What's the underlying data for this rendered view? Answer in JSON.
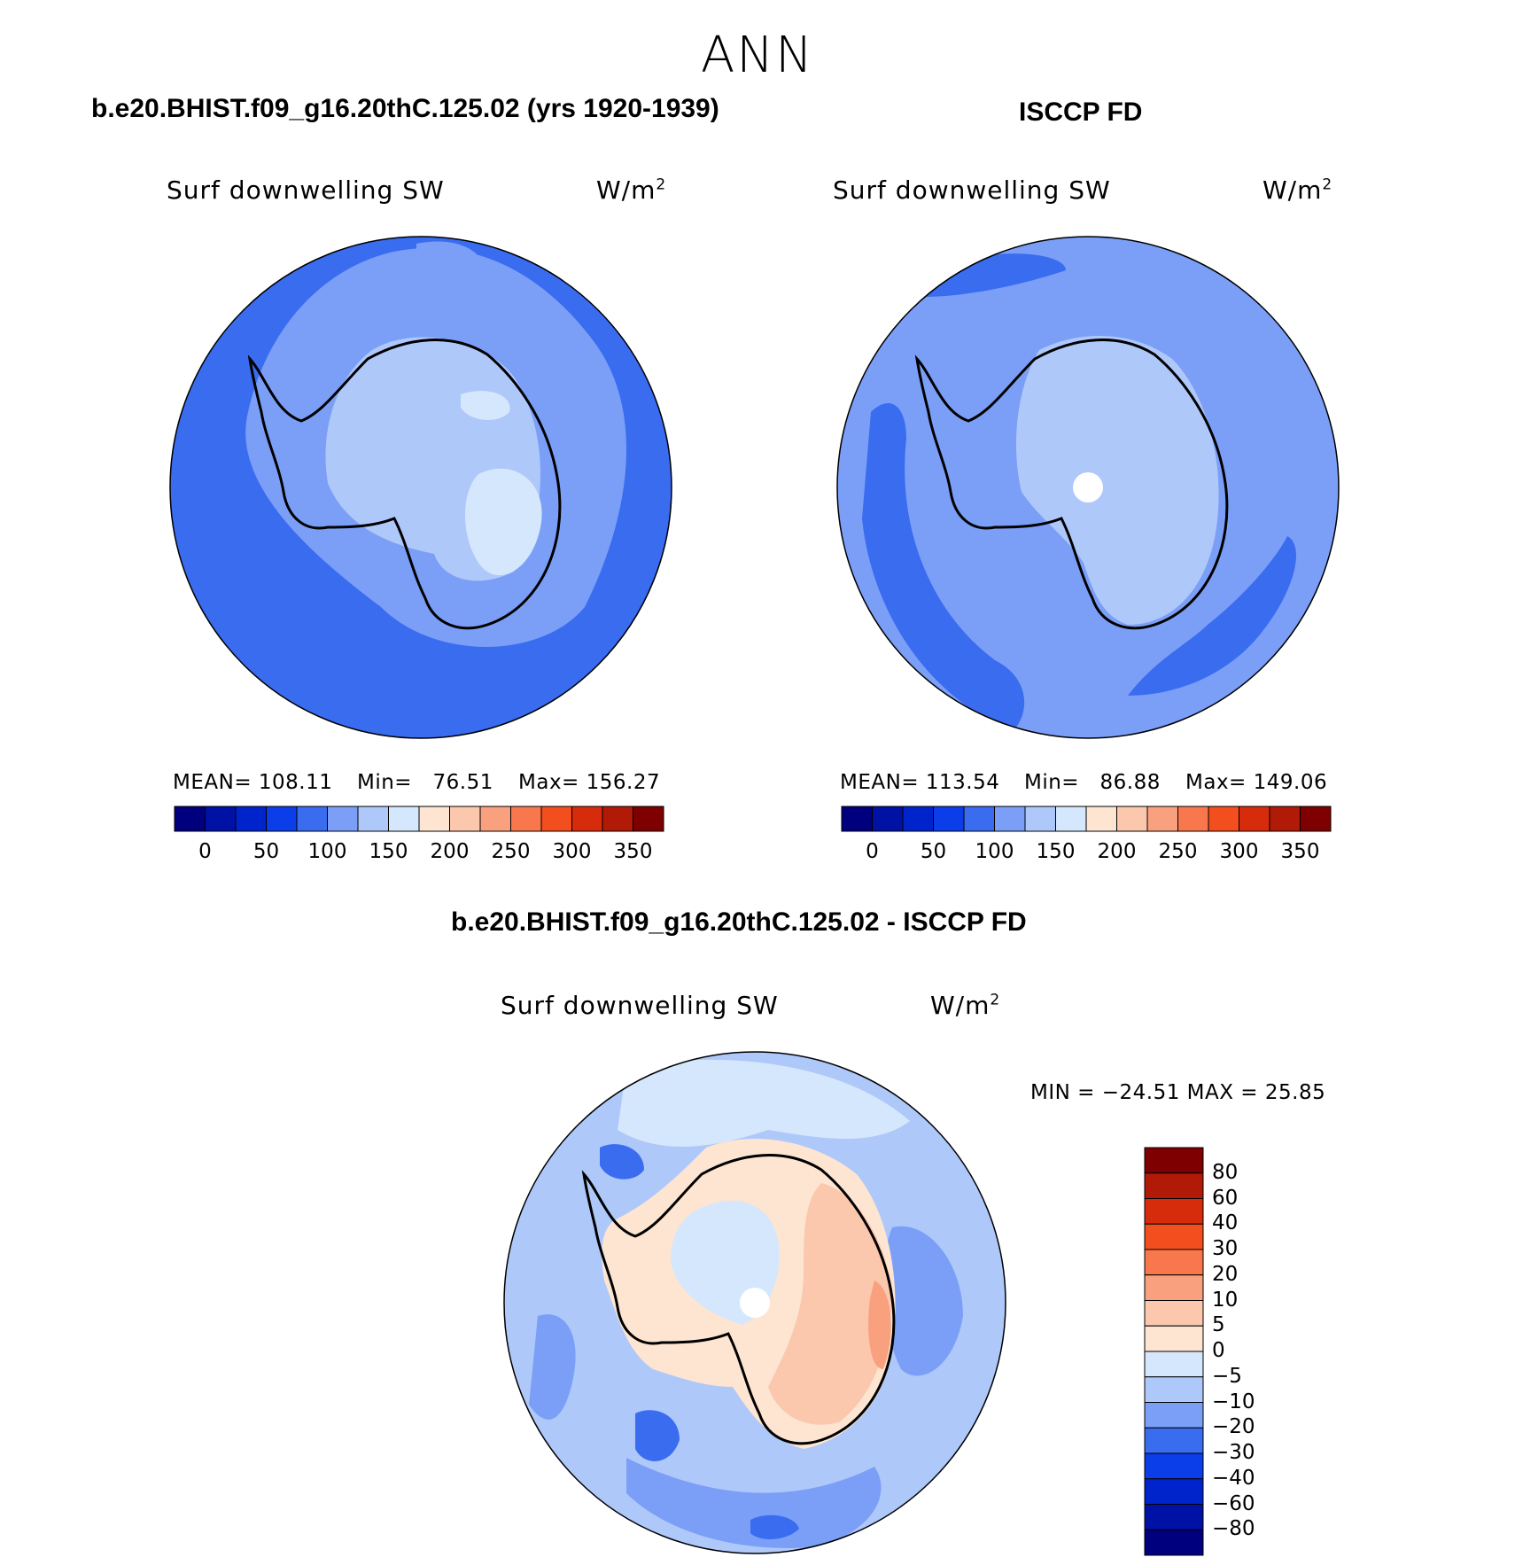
{
  "title": "ANN",
  "panels": [
    {
      "id": "model",
      "case_title": "b.e20.BHIST.f09_g16.20thC.125.02 (yrs 1920-1939)",
      "variable": "Surf  downwelling  SW",
      "units": "W/m",
      "units_exp": "2",
      "stats": {
        "mean_label": "MEAN=",
        "mean": "108.11",
        "min_label": "Min=",
        "min": "76.51",
        "max_label": "Max=",
        "max": "156.27"
      }
    },
    {
      "id": "obs",
      "case_title": "ISCCP FD",
      "variable": "Surf  downwelling  SW",
      "units": "W/m",
      "units_exp": "2",
      "stats": {
        "mean_label": "MEAN=",
        "mean": "113.54",
        "min_label": "Min=",
        "min": "86.88",
        "max_label": "Max=",
        "max": "149.06"
      }
    }
  ],
  "abs_colorbar": {
    "colors": [
      "#00007f",
      "#0011a6",
      "#0024cc",
      "#0b3de8",
      "#3a6cf0",
      "#7b9ff7",
      "#afc8fa",
      "#d5e7fc",
      "#fde5d2",
      "#fbc7ad",
      "#f9a07e",
      "#f8774c",
      "#f24e1e",
      "#d62c0c",
      "#b01a06",
      "#7f0000"
    ],
    "ticks": [
      "0",
      "50",
      "100",
      "150",
      "200",
      "250",
      "300",
      "350"
    ]
  },
  "diff_panel": {
    "case_title": "b.e20.BHIST.f09_g16.20thC.125.02 - ISCCP FD",
    "variable": "Surf  downwelling  SW",
    "units": "W/m",
    "units_exp": "2",
    "minmax": "MIN  =  −24.51  MAX  =    25.85"
  },
  "diff_colorbar": {
    "colors": [
      "#00007f",
      "#0011a6",
      "#0024cc",
      "#0b3de8",
      "#3a6cf0",
      "#7b9ff7",
      "#afc8fa",
      "#d5e7fc",
      "#fde5d2",
      "#fbc7ad",
      "#f9a07e",
      "#f8774c",
      "#f24e1e",
      "#d62c0c",
      "#b01a06",
      "#7f0000"
    ],
    "ticks": [
      "80",
      "60",
      "40",
      "30",
      "20",
      "10",
      "5",
      "0",
      "−5",
      "−10",
      "−20",
      "−30",
      "−40",
      "−60",
      "−80"
    ]
  },
  "map_colors": {
    "ocean_dark": "#3a6cf0",
    "ocean_mid": "#7b9ff7",
    "land_light": "#afc8fa",
    "land_lighter": "#d5e7fc",
    "warm_light": "#fde5d2",
    "warm_mid": "#fbc7ad",
    "warm_strong": "#f9a07e"
  }
}
